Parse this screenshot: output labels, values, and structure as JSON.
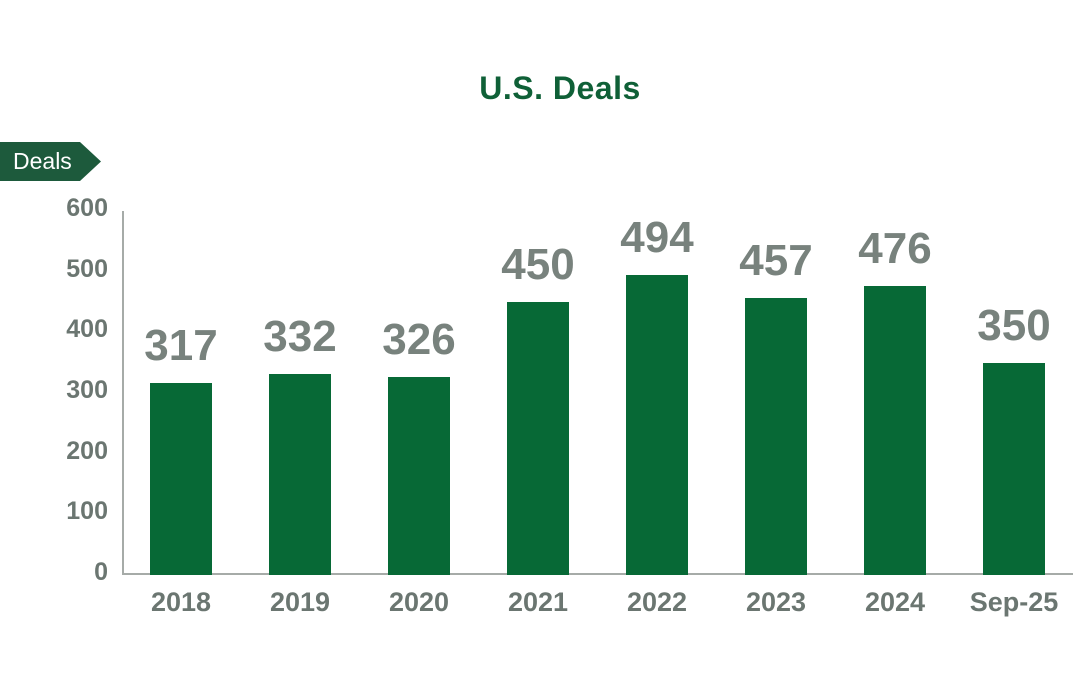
{
  "tag": {
    "label": "Deals",
    "bg_color": "#1d5a3c",
    "text_color": "#ffffff"
  },
  "chart_data": {
    "type": "bar",
    "title": "U.S. Deals",
    "title_color": "#0f6037",
    "categories": [
      "2018",
      "2019",
      "2020",
      "2021",
      "2022",
      "2023",
      "2024",
      "Sep-25"
    ],
    "values": [
      317,
      332,
      326,
      450,
      494,
      457,
      476,
      350
    ],
    "series_name": "Deals",
    "xlabel": "",
    "ylabel": "",
    "ylim": [
      0,
      600
    ],
    "yticks": [
      0,
      100,
      200,
      300,
      400,
      500,
      600
    ],
    "grid": false,
    "legend_position": "none",
    "value_labels_shown": true,
    "bar_color": "#076936",
    "value_label_color": "#78827d",
    "axis_tick_color": "#6b7671",
    "axis_line_color": "#a6aba8"
  }
}
